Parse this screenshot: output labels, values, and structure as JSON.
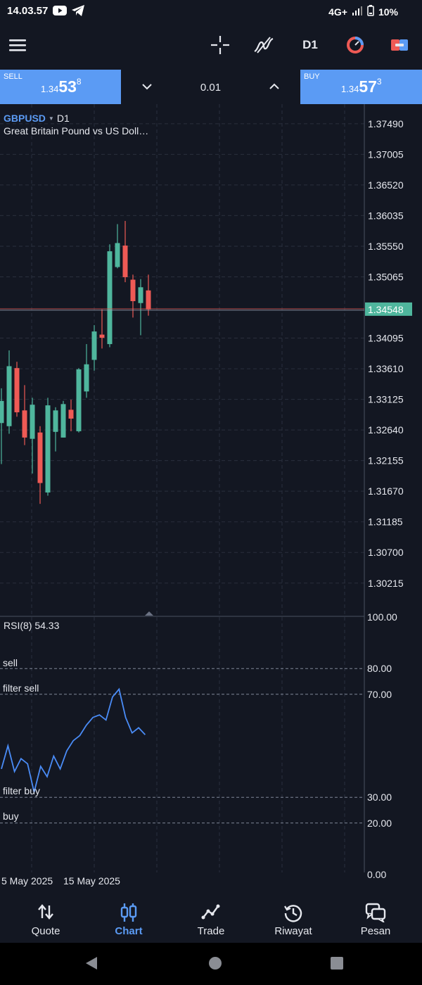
{
  "status_bar": {
    "time": "14.03.57",
    "network": "4G+",
    "battery": "10%"
  },
  "toolbar": {
    "timeframe": "D1",
    "icons": [
      "menu-icon",
      "crosshair-icon",
      "indicators-icon",
      "timeframe",
      "objects-icon",
      "chart-type-icon"
    ]
  },
  "trade": {
    "sell_label": "SELL",
    "sell_price_prefix": "1.34",
    "sell_price_big": "53",
    "sell_price_sup": "8",
    "buy_label": "BUY",
    "buy_price_prefix": "1.34",
    "buy_price_big": "57",
    "buy_price_sup": "3",
    "volume": "0.01"
  },
  "chart": {
    "symbol": "GBPUSD",
    "timeframe": "D1",
    "description": "Great Britain Pound vs US Doll…",
    "current_price_label": "1.34548",
    "indicator_label": "RSI(8) 54.33",
    "rsi_levels": [
      {
        "name": "sell",
        "value": 80
      },
      {
        "name": "filter sell",
        "value": 70
      },
      {
        "name": "filter buy",
        "value": 30
      },
      {
        "name": "buy",
        "value": 20
      }
    ],
    "x_labels": [
      "5 May 2025",
      "15 May 2025"
    ],
    "colors": {
      "bull": "#4fb69d",
      "bear": "#ee5a55",
      "rsi_line": "#4a8cf7",
      "price_tag": "#4fb69d",
      "accent": "#5b9bf4"
    }
  },
  "chart_data": {
    "type": "candlestick",
    "ylim": [
      1.297,
      1.378
    ],
    "price_ticks": [
      "1.37490",
      "1.37005",
      "1.36520",
      "1.36035",
      "1.35550",
      "1.35065",
      "1.34095",
      "1.33610",
      "1.33125",
      "1.32640",
      "1.32155",
      "1.31670",
      "1.31185",
      "1.30700",
      "1.30215"
    ],
    "candles": [
      {
        "open": 1.3275,
        "high": 1.333,
        "low": 1.321,
        "close": 1.331
      },
      {
        "open": 1.327,
        "high": 1.339,
        "low": 1.3258,
        "close": 1.3365
      },
      {
        "open": 1.3362,
        "high": 1.3372,
        "low": 1.3285,
        "close": 1.3292
      },
      {
        "open": 1.3295,
        "high": 1.3335,
        "low": 1.324,
        "close": 1.3252
      },
      {
        "open": 1.325,
        "high": 1.3315,
        "low": 1.3195,
        "close": 1.3304
      },
      {
        "open": 1.326,
        "high": 1.327,
        "low": 1.3147,
        "close": 1.318
      },
      {
        "open": 1.3165,
        "high": 1.3315,
        "low": 1.316,
        "close": 1.3303
      },
      {
        "open": 1.3261,
        "high": 1.33,
        "low": 1.323,
        "close": 1.3295
      },
      {
        "open": 1.3252,
        "high": 1.331,
        "low": 1.3252,
        "close": 1.3305
      },
      {
        "open": 1.3296,
        "high": 1.3312,
        "low": 1.3262,
        "close": 1.3282
      },
      {
        "open": 1.3262,
        "high": 1.3362,
        "low": 1.326,
        "close": 1.336
      },
      {
        "open": 1.3325,
        "high": 1.34,
        "low": 1.3315,
        "close": 1.3368
      },
      {
        "open": 1.3375,
        "high": 1.343,
        "low": 1.3358,
        "close": 1.342
      },
      {
        "open": 1.3415,
        "high": 1.3455,
        "low": 1.3393,
        "close": 1.341
      },
      {
        "open": 1.34,
        "high": 1.3558,
        "low": 1.3395,
        "close": 1.3547
      },
      {
        "open": 1.3522,
        "high": 1.359,
        "low": 1.352,
        "close": 1.356
      },
      {
        "open": 1.3556,
        "high": 1.3595,
        "low": 1.3498,
        "close": 1.3506
      },
      {
        "open": 1.3502,
        "high": 1.351,
        "low": 1.3442,
        "close": 1.3468
      },
      {
        "open": 1.3465,
        "high": 1.3503,
        "low": 1.3414,
        "close": 1.349
      },
      {
        "open": 1.3485,
        "high": 1.351,
        "low": 1.3445,
        "close": 1.3455
      }
    ],
    "rsi": {
      "ylim": [
        0,
        100
      ],
      "ticks": [
        "100.00",
        "80.00",
        "70.00",
        "30.00",
        "20.00",
        "0.00"
      ],
      "values": [
        41,
        50,
        40,
        45,
        43,
        32,
        42,
        38,
        46,
        41,
        48,
        52,
        54,
        58,
        61,
        62,
        60,
        69,
        72,
        61,
        55,
        57,
        54.33
      ]
    }
  },
  "bottom_nav": [
    {
      "label": "Quote",
      "icon": "quote-arrows-icon",
      "active": false
    },
    {
      "label": "Chart",
      "icon": "chart-candles-icon",
      "active": true
    },
    {
      "label": "Trade",
      "icon": "trade-line-icon",
      "active": false
    },
    {
      "label": "Riwayat",
      "icon": "history-clock-icon",
      "active": false
    },
    {
      "label": "Pesan",
      "icon": "messages-icon",
      "active": false
    }
  ]
}
